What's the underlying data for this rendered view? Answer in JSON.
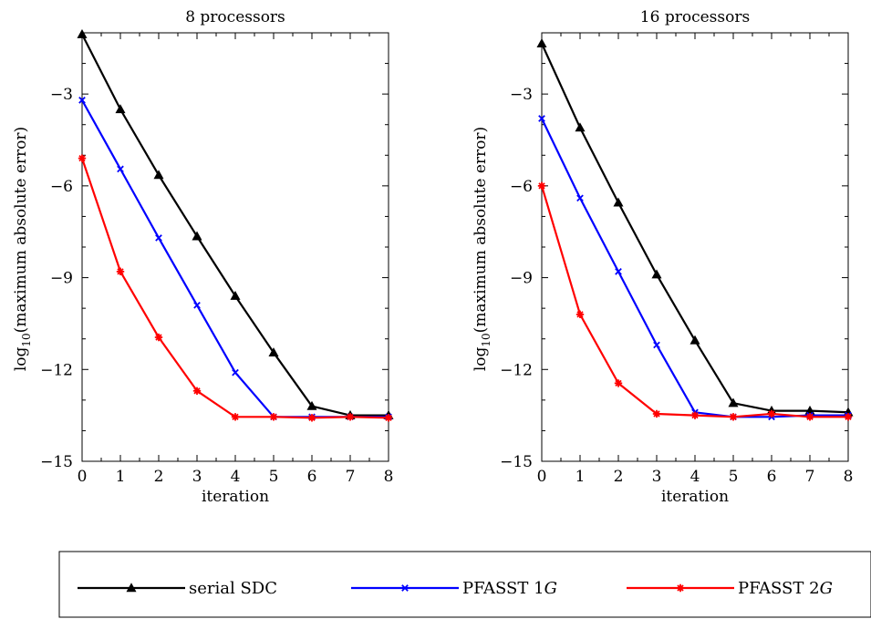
{
  "chart_data": [
    {
      "type": "line",
      "title": "8 processors",
      "xlabel": "iteration",
      "ylabel": "log10(maximum absolute error)",
      "ylabel_main": "log",
      "ylabel_sub": "10",
      "ylabel_rest": "(maximum absolute error)",
      "xlim": [
        0,
        8
      ],
      "ylim": [
        -15,
        -1.0
      ],
      "xticks": [
        0,
        1,
        2,
        3,
        4,
        5,
        6,
        7,
        8
      ],
      "xtick_labels": [
        "0",
        "1",
        "2",
        "3",
        "4",
        "5",
        "6",
        "7",
        "8"
      ],
      "yticks": [
        -15,
        -12,
        -9,
        -6,
        -3
      ],
      "ytick_labels": [
        "−15",
        "−12",
        "−9",
        "−6",
        "−3"
      ],
      "grid": false,
      "x": [
        0,
        1,
        2,
        3,
        4,
        5,
        6,
        7,
        8
      ],
      "series": [
        {
          "name": "serial SDC",
          "color": "#000000",
          "marker": "triangle",
          "values": [
            -1.05,
            -3.5,
            -5.65,
            -7.65,
            -9.6,
            -11.45,
            -13.2,
            -13.5,
            -13.5
          ]
        },
        {
          "name": "PFASST 1G",
          "color": "#0000ff",
          "marker": "x",
          "values": [
            -3.2,
            -5.45,
            -7.7,
            -9.9,
            -12.1,
            -13.55,
            -13.55,
            -13.55,
            -13.55
          ]
        },
        {
          "name": "PFASST 2G",
          "color": "#ff0000",
          "marker": "star",
          "values": [
            -5.1,
            -8.8,
            -10.95,
            -12.7,
            -13.55,
            -13.55,
            -13.58,
            -13.55,
            -13.58
          ]
        }
      ]
    },
    {
      "type": "line",
      "title": "16 processors",
      "xlabel": "iteration",
      "ylabel": "log10(maximum absolute error)",
      "ylabel_main": "log",
      "ylabel_sub": "10",
      "ylabel_rest": "(maximum absolute error)",
      "xlim": [
        0,
        8
      ],
      "ylim": [
        -15,
        -1.0
      ],
      "xticks": [
        0,
        1,
        2,
        3,
        4,
        5,
        6,
        7,
        8
      ],
      "xtick_labels": [
        "0",
        "1",
        "2",
        "3",
        "4",
        "5",
        "6",
        "7",
        "8"
      ],
      "yticks": [
        -15,
        -12,
        -9,
        -6,
        -3
      ],
      "ytick_labels": [
        "−15",
        "−12",
        "−9",
        "−6",
        "−3"
      ],
      "grid": false,
      "x": [
        0,
        1,
        2,
        3,
        4,
        5,
        6,
        7,
        8
      ],
      "series": [
        {
          "name": "serial SDC",
          "color": "#000000",
          "marker": "triangle",
          "values": [
            -1.35,
            -4.1,
            -6.55,
            -8.9,
            -11.05,
            -13.1,
            -13.35,
            -13.35,
            -13.4
          ]
        },
        {
          "name": "PFASST 1G",
          "color": "#0000ff",
          "marker": "x",
          "values": [
            -3.8,
            -6.4,
            -8.8,
            -11.2,
            -13.4,
            -13.55,
            -13.55,
            -13.5,
            -13.5
          ]
        },
        {
          "name": "PFASST 2G",
          "color": "#ff0000",
          "marker": "star",
          "values": [
            -6.0,
            -10.2,
            -12.45,
            -13.45,
            -13.5,
            -13.55,
            -13.45,
            -13.55,
            -13.55
          ]
        }
      ]
    }
  ],
  "legend": {
    "placement": "bottom",
    "items": [
      {
        "label": "serial SDC",
        "label_main": "serial SDC",
        "label_g": "",
        "color": "#000000",
        "marker": "triangle"
      },
      {
        "label": "PFASST 1G",
        "label_main": "PFASST 1",
        "label_g": "G",
        "color": "#0000ff",
        "marker": "x"
      },
      {
        "label": "PFASST 2G",
        "label_main": "PFASST 2",
        "label_g": "G",
        "color": "#ff0000",
        "marker": "star"
      }
    ]
  }
}
